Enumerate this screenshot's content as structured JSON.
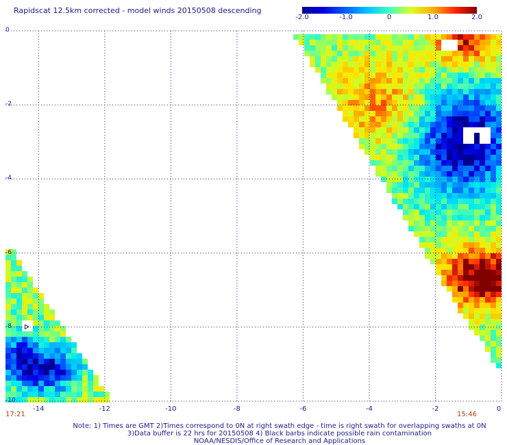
{
  "title": "Rapidscat 12.5km corrected - model winds 20150508 descending",
  "colorbar": {
    "ticks": [
      "-2.0",
      "-1.0",
      "0",
      "1.0",
      "2.0"
    ],
    "range": [
      -2.0,
      2.0
    ],
    "colors": [
      "#000090",
      "#0000d8",
      "#0050ff",
      "#00a8ff",
      "#00e8f0",
      "#40ffb0",
      "#b0ff40",
      "#ffff00",
      "#ffb000",
      "#ff5000",
      "#e00000",
      "#800000"
    ]
  },
  "axes": {
    "x_ticks": [
      "-14",
      "-12",
      "-10",
      "-8",
      "-6",
      "-4",
      "-2",
      "0"
    ],
    "x_range": [
      -15,
      0
    ],
    "y_ticks": [
      "0",
      "-2",
      "-4",
      "-6",
      "-8",
      "-10"
    ],
    "y_range": [
      -10,
      0
    ],
    "grid": true
  },
  "times": {
    "left": "17:21",
    "right": "15:46"
  },
  "notes": {
    "line1": "Note: 1) Times are GMT 2)Times correspond to 0N at right swath edge - time is right swath for overlapping swaths at 0N",
    "line2": "3)Data buffer is 22 hrs for 20150508 4) Black barbs indicate possible rain contamination",
    "line3": "NOAA/NESDIS/Office of Research and Applications"
  },
  "swaths": [
    {
      "name": "east",
      "lon_range": [
        -6.3,
        0
      ],
      "lat_range": [
        -9.0,
        0
      ]
    },
    {
      "name": "west",
      "lon_range": [
        -15,
        -12.2
      ],
      "lat_range": [
        -10,
        -5.9
      ]
    }
  ]
}
